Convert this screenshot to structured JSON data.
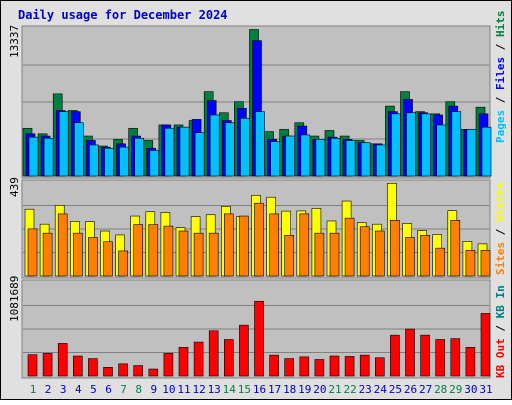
{
  "title": "Daily usage for December 2024",
  "colors": {
    "title": "#0000cc",
    "hits": "#008040",
    "files": "#0000ff",
    "pages": "#00c0ff",
    "visits": "#ffff00",
    "sites": "#ff8000",
    "kbin": "#008080",
    "kbout": "#ff0000",
    "weekend_day": "#00804c",
    "weekday": "#0000cc",
    "panel_bg": "#c0c0c0",
    "frame_bg": "#e0e0e0"
  },
  "chart_data": [
    {
      "type": "bar",
      "title": "Daily usage for December 2024",
      "max_label": "13337",
      "legend": [
        {
          "name": "Hits",
          "color": "#008040"
        },
        {
          "name": "Files",
          "color": "#0000ff"
        },
        {
          "name": "Pages",
          "color": "#00c0ff"
        }
      ],
      "legend_separator": " / ",
      "ylim": [
        0,
        13337
      ],
      "categories": [
        "1",
        "2",
        "3",
        "4",
        "5",
        "6",
        "7",
        "8",
        "9",
        "10",
        "11",
        "12",
        "13",
        "14",
        "15",
        "16",
        "17",
        "18",
        "19",
        "20",
        "21",
        "22",
        "23",
        "24",
        "25",
        "26",
        "27",
        "28",
        "29",
        "30",
        "31"
      ],
      "series": [
        {
          "name": "Hits",
          "values": [
            4300,
            3800,
            7400,
            5900,
            3600,
            2700,
            3300,
            4300,
            3200,
            4600,
            4600,
            5000,
            7600,
            5700,
            6700,
            13200,
            4000,
            4200,
            4800,
            3600,
            4100,
            3600,
            3200,
            2900,
            6300,
            7600,
            5800,
            5600,
            6700,
            4200,
            6200
          ]
        },
        {
          "name": "Files",
          "values": [
            3800,
            3600,
            5900,
            5800,
            3200,
            2600,
            2900,
            3600,
            2500,
            4600,
            4400,
            5100,
            6800,
            5000,
            6100,
            12200,
            3300,
            3600,
            4500,
            3300,
            3500,
            3300,
            3000,
            2900,
            5800,
            6900,
            5700,
            5500,
            6300,
            4200,
            5600
          ]
        },
        {
          "name": "Pages",
          "values": [
            3500,
            3400,
            5800,
            4800,
            2800,
            2500,
            2600,
            3400,
            2300,
            4300,
            4400,
            3900,
            5500,
            4800,
            5200,
            5800,
            3100,
            3600,
            3700,
            3300,
            3400,
            3200,
            3000,
            2800,
            5600,
            5700,
            5600,
            4600,
            5800,
            4200,
            4400
          ]
        }
      ],
      "xlabel": "",
      "ylabel": ""
    },
    {
      "type": "bar",
      "max_label": "439",
      "legend": [
        {
          "name": "Visits",
          "color": "#ffff00"
        },
        {
          "name": "Sites",
          "color": "#ff8000"
        }
      ],
      "legend_separator": " / ",
      "ylim": [
        0,
        439
      ],
      "categories": [
        "1",
        "2",
        "3",
        "4",
        "5",
        "6",
        "7",
        "8",
        "9",
        "10",
        "11",
        "12",
        "13",
        "14",
        "15",
        "16",
        "17",
        "18",
        "19",
        "20",
        "21",
        "22",
        "23",
        "24",
        "25",
        "26",
        "27",
        "28",
        "29",
        "30",
        "31"
      ],
      "series": [
        {
          "name": "Visits",
          "values": [
            312,
            242,
            330,
            255,
            254,
            210,
            192,
            280,
            300,
            297,
            226,
            277,
            286,
            325,
            277,
            377,
            368,
            303,
            304,
            316,
            257,
            350,
            250,
            242,
            433,
            246,
            212,
            194,
            305,
            162,
            150
          ]
        },
        {
          "name": "Sites",
          "values": [
            220,
            200,
            290,
            200,
            180,
            160,
            117,
            240,
            240,
            233,
            210,
            200,
            200,
            290,
            280,
            340,
            290,
            190,
            290,
            200,
            200,
            270,
            230,
            210,
            260,
            180,
            190,
            130,
            260,
            120,
            120
          ]
        }
      ],
      "xlabel": "",
      "ylabel": ""
    },
    {
      "type": "bar",
      "max_label": "1081689",
      "legend": [
        {
          "name": "KB In",
          "color": "#008080"
        },
        {
          "name": "KB Out",
          "color": "#ff0000"
        }
      ],
      "legend_separator": " / ",
      "ylim": [
        0,
        1081689
      ],
      "categories": [
        "1",
        "2",
        "3",
        "4",
        "5",
        "6",
        "7",
        "8",
        "9",
        "10",
        "11",
        "12",
        "13",
        "14",
        "15",
        "16",
        "17",
        "18",
        "19",
        "20",
        "21",
        "22",
        "23",
        "24",
        "25",
        "26",
        "27",
        "28",
        "29",
        "30",
        "31"
      ],
      "series": [
        {
          "name": "KB In",
          "values": [
            0,
            0,
            0,
            0,
            0,
            0,
            0,
            0,
            0,
            0,
            0,
            0,
            0,
            0,
            0,
            0,
            0,
            0,
            0,
            0,
            0,
            0,
            0,
            0,
            0,
            0,
            0,
            0,
            0,
            0,
            0
          ]
        },
        {
          "name": "KB Out",
          "values": [
            245000,
            260000,
            375000,
            230000,
            200000,
            100000,
            140000,
            120000,
            80000,
            260000,
            330000,
            390000,
            520000,
            420000,
            585000,
            860000,
            240000,
            200000,
            220000,
            190000,
            230000,
            225000,
            240000,
            210000,
            470000,
            540000,
            470000,
            420000,
            430000,
            330000,
            720000
          ]
        }
      ],
      "xlabel": "",
      "ylabel": ""
    }
  ]
}
